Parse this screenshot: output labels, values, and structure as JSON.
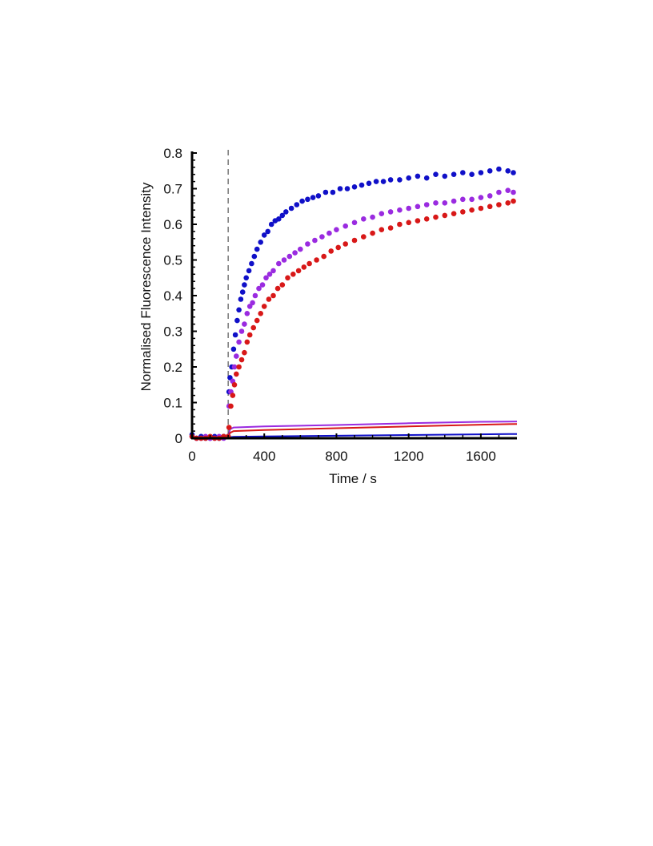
{
  "chart_data": {
    "type": "scatter",
    "title": "",
    "xlabel": "Time / s",
    "ylabel": "Normalised Fluorescence Intensity",
    "xlim": [
      0,
      1800
    ],
    "ylim": [
      0,
      0.8
    ],
    "x_ticks": [
      0,
      400,
      800,
      1200,
      1600
    ],
    "x_tick_labels": [
      "0",
      "400",
      "800",
      "1200",
      "1600"
    ],
    "y_ticks": [
      0,
      0.1,
      0.2,
      0.3,
      0.4,
      0.5,
      0.6,
      0.7,
      0.8
    ],
    "y_tick_labels": [
      "0",
      "0.1",
      "0.2",
      "0.3",
      "0.4",
      "0.5",
      "0.6",
      "0.7",
      "0.8"
    ],
    "grid": false,
    "legend": "none",
    "annotations": [
      {
        "type": "vertical-dashed-line",
        "x": 200
      }
    ],
    "series": [
      {
        "color": "#1010c8",
        "marker": "dot",
        "x": [
          0,
          25,
          50,
          75,
          100,
          125,
          150,
          175,
          200,
          205,
          210,
          220,
          230,
          240,
          250,
          260,
          270,
          280,
          290,
          300,
          315,
          330,
          345,
          360,
          380,
          400,
          420,
          440,
          460,
          480,
          500,
          520,
          550,
          580,
          610,
          640,
          670,
          700,
          740,
          780,
          820,
          860,
          900,
          940,
          980,
          1020,
          1060,
          1100,
          1150,
          1200,
          1250,
          1300,
          1350,
          1400,
          1450,
          1500,
          1550,
          1600,
          1650,
          1700,
          1750,
          1780
        ],
        "y": [
          0.01,
          0.0,
          0.005,
          0.0,
          0.0,
          0.005,
          0.0,
          0.005,
          0.005,
          0.13,
          0.17,
          0.2,
          0.25,
          0.29,
          0.33,
          0.36,
          0.39,
          0.41,
          0.43,
          0.45,
          0.47,
          0.49,
          0.51,
          0.53,
          0.55,
          0.57,
          0.58,
          0.6,
          0.61,
          0.615,
          0.625,
          0.635,
          0.645,
          0.655,
          0.665,
          0.67,
          0.675,
          0.68,
          0.69,
          0.69,
          0.7,
          0.7,
          0.705,
          0.71,
          0.715,
          0.72,
          0.72,
          0.725,
          0.725,
          0.73,
          0.735,
          0.73,
          0.74,
          0.735,
          0.74,
          0.745,
          0.74,
          0.745,
          0.75,
          0.755,
          0.75,
          0.745
        ]
      },
      {
        "color": "#9a2be0",
        "marker": "dot",
        "x": [
          0,
          25,
          50,
          75,
          100,
          125,
          150,
          175,
          200,
          205,
          215,
          225,
          235,
          245,
          260,
          275,
          290,
          305,
          320,
          335,
          350,
          370,
          390,
          410,
          430,
          450,
          480,
          510,
          540,
          570,
          600,
          640,
          680,
          720,
          760,
          800,
          850,
          900,
          950,
          1000,
          1050,
          1100,
          1150,
          1200,
          1250,
          1300,
          1350,
          1400,
          1450,
          1500,
          1550,
          1600,
          1650,
          1700,
          1750,
          1780
        ],
        "y": [
          0.005,
          0.0,
          0.0,
          0.005,
          0.0,
          0.0,
          0.005,
          0.0,
          0.005,
          0.09,
          0.13,
          0.16,
          0.2,
          0.23,
          0.27,
          0.3,
          0.32,
          0.35,
          0.37,
          0.38,
          0.4,
          0.42,
          0.43,
          0.45,
          0.46,
          0.47,
          0.49,
          0.5,
          0.51,
          0.52,
          0.53,
          0.545,
          0.555,
          0.565,
          0.575,
          0.585,
          0.595,
          0.605,
          0.615,
          0.62,
          0.63,
          0.635,
          0.64,
          0.645,
          0.65,
          0.655,
          0.66,
          0.66,
          0.665,
          0.67,
          0.67,
          0.675,
          0.68,
          0.69,
          0.695,
          0.69
        ]
      },
      {
        "color": "#d81818",
        "marker": "dot",
        "x": [
          0,
          25,
          50,
          75,
          100,
          125,
          150,
          175,
          200,
          205,
          215,
          225,
          235,
          245,
          260,
          275,
          290,
          305,
          320,
          340,
          360,
          380,
          400,
          425,
          450,
          475,
          500,
          530,
          560,
          590,
          620,
          650,
          690,
          730,
          770,
          810,
          850,
          900,
          950,
          1000,
          1050,
          1100,
          1150,
          1200,
          1250,
          1300,
          1350,
          1400,
          1450,
          1500,
          1550,
          1600,
          1650,
          1700,
          1750,
          1780
        ],
        "y": [
          0.005,
          0.0,
          0.0,
          0.0,
          0.005,
          0.0,
          0.0,
          0.005,
          0.005,
          0.03,
          0.09,
          0.12,
          0.15,
          0.18,
          0.2,
          0.22,
          0.24,
          0.27,
          0.29,
          0.31,
          0.33,
          0.35,
          0.37,
          0.39,
          0.4,
          0.42,
          0.43,
          0.45,
          0.46,
          0.47,
          0.48,
          0.49,
          0.5,
          0.51,
          0.525,
          0.535,
          0.545,
          0.555,
          0.565,
          0.575,
          0.585,
          0.59,
          0.6,
          0.605,
          0.61,
          0.615,
          0.62,
          0.625,
          0.63,
          0.635,
          0.64,
          0.645,
          0.65,
          0.655,
          0.66,
          0.665
        ]
      }
    ],
    "lines": [
      {
        "color": "#9a2be0",
        "x": [
          0,
          200,
          210,
          230,
          400,
          800,
          1200,
          1600,
          1800
        ],
        "y": [
          0.0,
          0.0,
          0.025,
          0.03,
          0.033,
          0.037,
          0.042,
          0.046,
          0.047
        ]
      },
      {
        "color": "#d81818",
        "x": [
          0,
          200,
          210,
          230,
          400,
          800,
          1200,
          1600,
          1800
        ],
        "y": [
          0.0,
          0.0,
          0.015,
          0.02,
          0.023,
          0.028,
          0.033,
          0.038,
          0.04
        ]
      },
      {
        "color": "#1010c8",
        "x": [
          0,
          200,
          210,
          230,
          400,
          800,
          1200,
          1600,
          1800
        ],
        "y": [
          0.0,
          0.0,
          0.003,
          0.004,
          0.005,
          0.007,
          0.009,
          0.011,
          0.012
        ]
      }
    ]
  }
}
